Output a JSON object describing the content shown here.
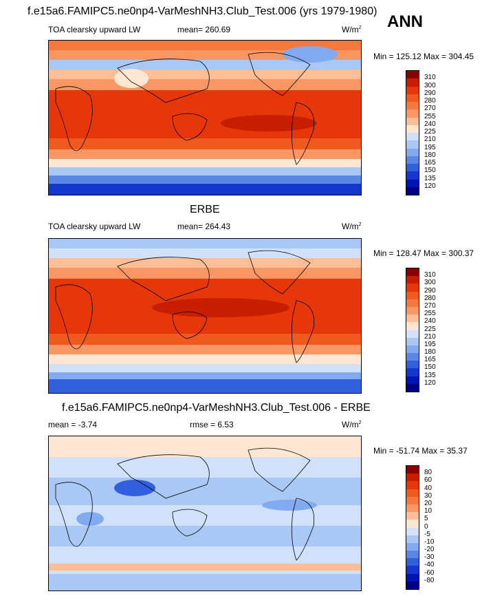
{
  "panel1": {
    "title": "f.e15a6.FAMIPC5.ne0np4-VarMeshNH3.Club_Test.006 (yrs 1979-1980)",
    "season": "ANN",
    "variable": "TOA clearsky upward LW",
    "mean": "mean= 260.69",
    "units": "W/m",
    "units_exp": "2",
    "minmax": "Min = 125.12 Max = 304.45"
  },
  "panel2": {
    "title": "ERBE",
    "variable": "TOA clearsky upward LW",
    "mean": "mean= 264.43",
    "units": "W/m",
    "units_exp": "2",
    "minmax": "Min = 128.47 Max = 300.37"
  },
  "panel3": {
    "title": "f.e15a6.FAMIPC5.ne0np4-VarMeshNH3.Club_Test.006 - ERBE",
    "mean": "mean =  -3.74",
    "rmse": "rmse =   6.53",
    "units": "W/m",
    "units_exp": "2",
    "minmax": "Min = -51.74 Max =  35.37"
  },
  "colorbar_abs": {
    "labels": [
      "310",
      "300",
      "290",
      "280",
      "270",
      "255",
      "240",
      "225",
      "210",
      "195",
      "180",
      "165",
      "150",
      "135",
      "120"
    ],
    "colors": [
      "#8b0000",
      "#c81e00",
      "#e6370a",
      "#f05a1e",
      "#f5783c",
      "#f89664",
      "#fbbe96",
      "#fde6d2",
      "#d2e1fa",
      "#aac8f5",
      "#82aaf0",
      "#5a87e6",
      "#325fdc",
      "#1437cd",
      "#0014b4",
      "#000080"
    ]
  },
  "colorbar_diff": {
    "labels": [
      "80",
      "60",
      "40",
      "30",
      "20",
      "10",
      "5",
      "0",
      "-5",
      "-10",
      "-20",
      "-30",
      "-40",
      "-60",
      "-80"
    ],
    "colors": [
      "#8b0000",
      "#c81e00",
      "#e6370a",
      "#f05a1e",
      "#f5783c",
      "#f89664",
      "#fbbe96",
      "#fde6d2",
      "#d2e1fa",
      "#aac8f5",
      "#82aaf0",
      "#5a87e6",
      "#325fdc",
      "#1437cd",
      "#0014b4",
      "#000080"
    ]
  }
}
